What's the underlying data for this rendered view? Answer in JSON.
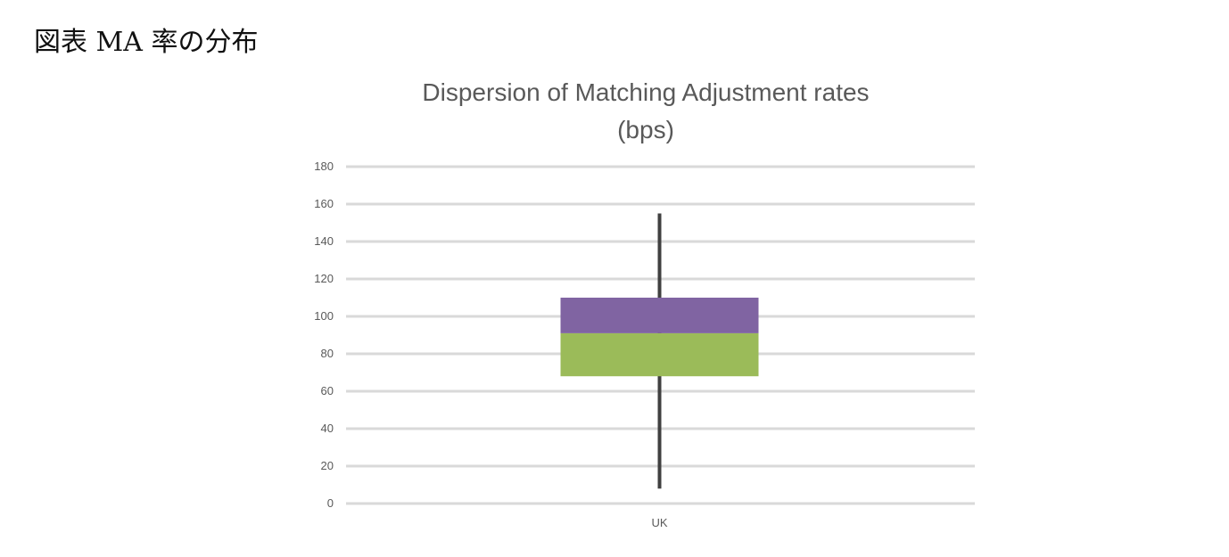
{
  "figure": {
    "caption": "図表 MA 率の分布"
  },
  "chart_data": {
    "type": "box",
    "title_lines": [
      "Dispersion of Matching Adjustment rates",
      "(bps)"
    ],
    "categories": [
      "UK"
    ],
    "ylim": [
      0,
      180
    ],
    "y_ticks": [
      0,
      20,
      40,
      60,
      80,
      100,
      120,
      140,
      160,
      180
    ],
    "grid": true,
    "boxes": [
      {
        "category": "UK",
        "min": 8,
        "q1": 68,
        "median": 91,
        "q3": 110,
        "max": 155
      }
    ],
    "colors": {
      "lower_box": "#9bbb59",
      "upper_box": "#8064a2",
      "whisker": "#404040",
      "grid": "#d9d9d9"
    }
  }
}
